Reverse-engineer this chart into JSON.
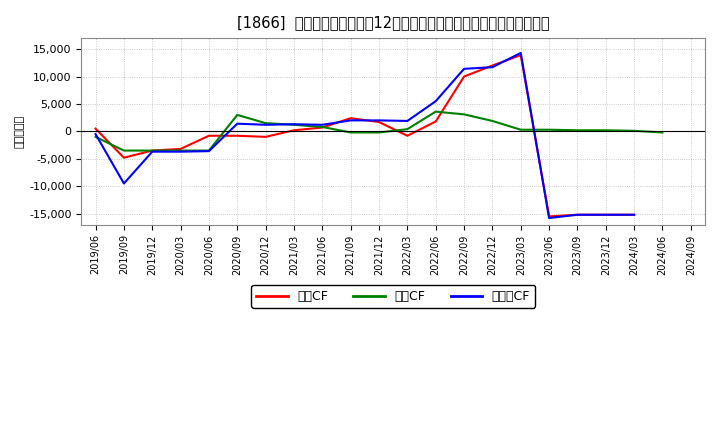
{
  "title": "[1866]  キャッシュフローの12か月移動合計の対前年同期増減額の推移",
  "ylabel": "（百万円）",
  "background_color": "#ffffff",
  "plot_bg_color": "#ffffff",
  "grid_color": "#bbbbbb",
  "ylim": [
    -17000,
    17000
  ],
  "yticks": [
    -15000,
    -10000,
    -5000,
    0,
    5000,
    10000,
    15000
  ],
  "dates": [
    "2019/06",
    "2019/09",
    "2019/12",
    "2020/03",
    "2020/06",
    "2020/09",
    "2020/12",
    "2021/03",
    "2021/06",
    "2021/09",
    "2021/12",
    "2022/03",
    "2022/06",
    "2022/09",
    "2022/12",
    "2023/03",
    "2023/06",
    "2023/09",
    "2023/12",
    "2024/03",
    "2024/06",
    "2024/09"
  ],
  "operating_cf": [
    500,
    -4800,
    -3500,
    -3200,
    -800,
    -800,
    -1000,
    200,
    700,
    2400,
    1700,
    -800,
    1800,
    10000,
    12000,
    13900,
    -15500,
    -15200,
    -15200,
    -15200,
    null,
    null
  ],
  "investing_cf": [
    -1000,
    -3500,
    -3500,
    -3500,
    -3500,
    3000,
    1500,
    1200,
    800,
    -200,
    -200,
    400,
    3600,
    3100,
    1900,
    300,
    300,
    200,
    200,
    100,
    -200,
    null
  ],
  "free_cf": [
    -500,
    -9500,
    -3700,
    -3700,
    -3600,
    1400,
    1200,
    1300,
    1200,
    2000,
    2000,
    1900,
    5500,
    11400,
    11700,
    14300,
    -15800,
    -15200,
    -15200,
    -15200,
    null,
    null
  ],
  "legend_labels": [
    "営業CF",
    "投資CF",
    "フリーCF"
  ],
  "legend_line_colors": [
    "#ff0000",
    "#008000",
    "#0000ff"
  ],
  "line_colors": [
    "#ff0000",
    "#008000",
    "#0000ff"
  ],
  "linewidth": 1.5
}
